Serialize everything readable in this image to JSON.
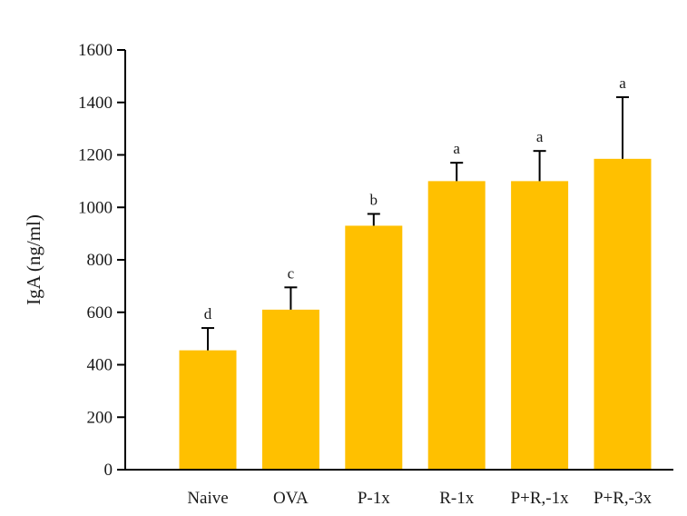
{
  "chart_data": {
    "type": "bar",
    "title": "",
    "xlabel": "",
    "ylabel": "IgA (ng/ml)",
    "ylim": [
      0,
      1600
    ],
    "yticks": [
      0,
      200,
      400,
      600,
      800,
      1000,
      1200,
      1400,
      1600
    ],
    "categories": [
      "Naive",
      "OVA",
      "P-1x",
      "R-1x",
      "P+R,-1x",
      "P+R,-3x"
    ],
    "values": [
      455,
      610,
      930,
      1100,
      1100,
      1185
    ],
    "error_upper": [
      85,
      85,
      45,
      70,
      115,
      235
    ],
    "significance_letters": [
      "d",
      "c",
      "b",
      "a",
      "a",
      "a"
    ],
    "grid": false,
    "legend": "none",
    "bar_color": "#FFC000",
    "axis_color": "#000000"
  }
}
